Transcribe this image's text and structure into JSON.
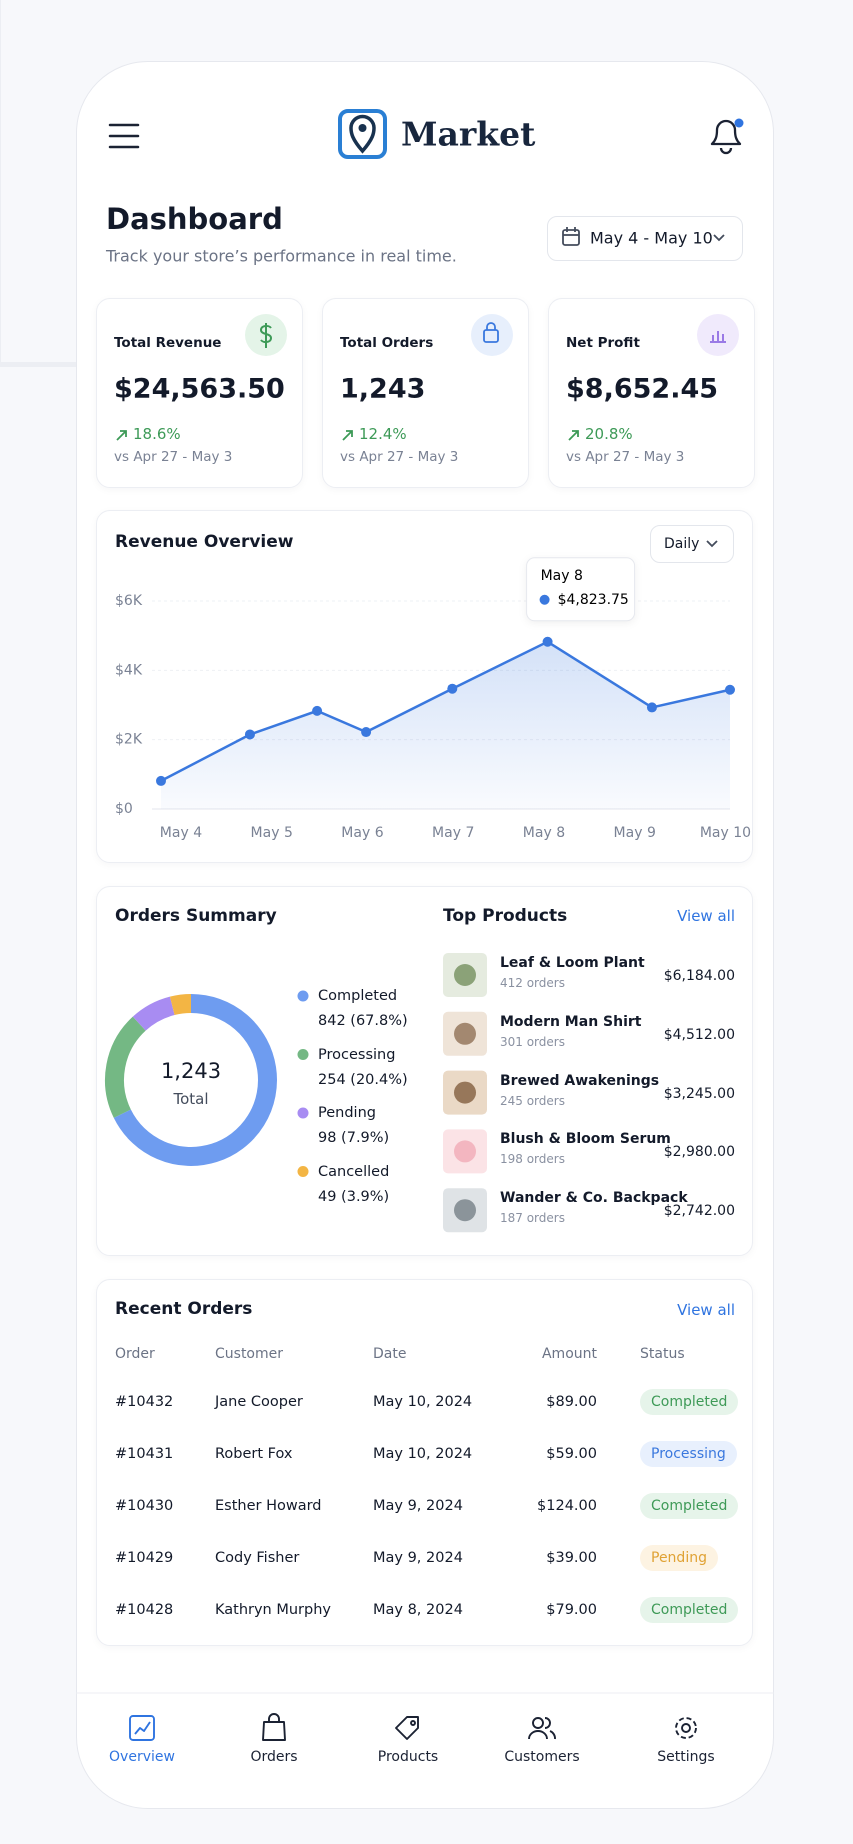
{
  "header": {
    "brand": "Market"
  },
  "page": {
    "title": "Dashboard",
    "subtitle": "Track your store’s performance in real time.",
    "date_range": "May 4 - May 10"
  },
  "kpis": [
    {
      "label": "Total Revenue",
      "value": "$24,563.50",
      "change": "18.6%",
      "compare": "vs Apr 27 - May 3"
    },
    {
      "label": "Total Orders",
      "value": "1,243",
      "change": "12.4%",
      "compare": "vs Apr 27 - May 3"
    },
    {
      "label": "Net Profit",
      "value": "$8,652.45",
      "change": "20.8%",
      "compare": "vs Apr 27 - May 3"
    }
  ],
  "revenue_chart": {
    "type": "line",
    "title": "Revenue Overview",
    "period": "Daily",
    "x": [
      3.78,
      4.76,
      5.5,
      6.04,
      6.99,
      8.04,
      9.19,
      10.05
    ],
    "values": [
      810,
      2150,
      2830,
      2220,
      3470,
      4823.75,
      2930,
      3440
    ],
    "value_labels": [
      null,
      null,
      null,
      null,
      null,
      "$4,823.75",
      null,
      null
    ],
    "tooltip_title": "May 8",
    "xlim": [
      3.78,
      10.05
    ],
    "xticks": [
      {
        "value": 4,
        "label": "May 4"
      },
      {
        "value": 5,
        "label": "May 5"
      },
      {
        "value": 6,
        "label": "May 6"
      },
      {
        "value": 7,
        "label": "May 7"
      },
      {
        "value": 8,
        "label": "May 8"
      },
      {
        "value": 9,
        "label": "May 9"
      },
      {
        "value": 10,
        "label": "May 10"
      }
    ],
    "ylim": [
      0,
      6000
    ],
    "yticks": [
      {
        "value": 0,
        "label": "$0"
      },
      {
        "value": 2000,
        "label": "$2K"
      },
      {
        "value": 4000,
        "label": "$4K"
      },
      {
        "value": 6000,
        "label": "$6K"
      }
    ],
    "color": "#3a78de",
    "grid": true
  },
  "orders_summary": {
    "type": "pie",
    "title": "Orders Summary",
    "center_value": "1,243",
    "center_label": "Total",
    "categories": [
      "Completed",
      "Processing",
      "Pending",
      "Cancelled"
    ],
    "values": [
      842,
      254,
      98,
      49
    ],
    "value_labels": [
      "842 (67.8%)",
      "254 (20.4%)",
      "98 (7.9%)",
      "49 (3.9%)"
    ],
    "colors": [
      "#6e9cf0",
      "#74b884",
      "#a88cf2",
      "#f3b544"
    ]
  },
  "top_products": {
    "title": "Top Products",
    "link": "View all",
    "items": [
      {
        "name": "Leaf & Loom Plant",
        "orders": "412 orders",
        "amount": "$6,184.00"
      },
      {
        "name": "Modern Man Shirt",
        "orders": "301 orders",
        "amount": "$4,512.00"
      },
      {
        "name": "Brewed Awakenings",
        "orders": "245 orders",
        "amount": "$3,245.00"
      },
      {
        "name": "Blush & Bloom Serum",
        "orders": "198 orders",
        "amount": "$2,980.00"
      },
      {
        "name": "Wander & Co. Backpack",
        "orders": "187 orders",
        "amount": "$2,742.00"
      }
    ]
  },
  "recent_orders": {
    "title": "Recent Orders",
    "link": "View all",
    "columns": [
      "Order",
      "Customer",
      "Date",
      "Amount",
      "Status"
    ],
    "rows": [
      [
        "#10432",
        "Jane Cooper",
        "May 10, 2024",
        "$89.00",
        "Completed"
      ],
      [
        "#10431",
        "Robert Fox",
        "May 10, 2024",
        "$59.00",
        "Processing"
      ],
      [
        "#10430",
        "Esther Howard",
        "May 9, 2024",
        "$124.00",
        "Completed"
      ],
      [
        "#10429",
        "Cody Fisher",
        "May 9, 2024",
        "$39.00",
        "Pending"
      ],
      [
        "#10428",
        "Kathryn Murphy",
        "May 8, 2024",
        "$79.00",
        "Completed"
      ]
    ],
    "status_colors": {
      "Completed": [
        "#e6f4ea",
        "#3e9a57"
      ],
      "Processing": [
        "#e8f0fd",
        "#3a78de"
      ],
      "Pending": [
        "#fdf3e2",
        "#e0a234"
      ]
    }
  },
  "nav": [
    "Overview",
    "Orders",
    "Products",
    "Customers",
    "Settings"
  ]
}
